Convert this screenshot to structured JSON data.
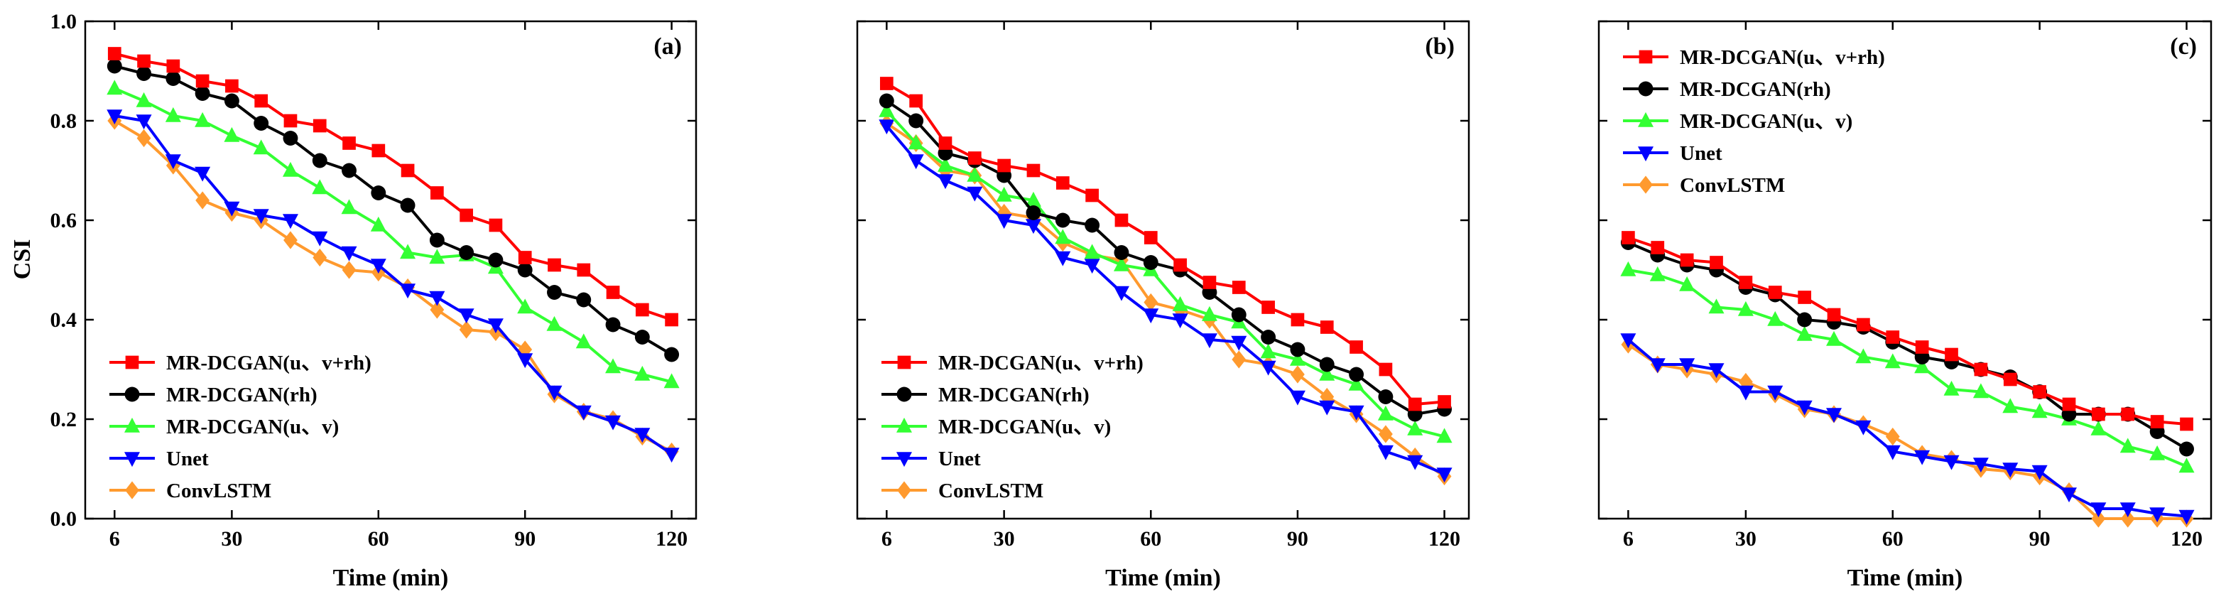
{
  "colors": {
    "MR-DCGAN(u、v+rh)": "#ff0000",
    "MR-DCGAN(rh)": "#000000",
    "MR-DCGAN(u、v)": "#33ff33",
    "Unet": "#0000ff",
    "ConvLSTM": "#ff9a2e"
  },
  "chart_data": [
    {
      "type": "line",
      "panel_label": "(a)",
      "xlabel": "Time (min)",
      "ylabel": "CSI",
      "xlim": [
        0,
        125
      ],
      "ylim": [
        0.0,
        1.0
      ],
      "xticks": [
        "6",
        "30",
        "60",
        "90",
        "120"
      ],
      "yticks": [
        "0.0",
        "0.2",
        "0.4",
        "0.6",
        "0.8",
        "1.0"
      ],
      "legend_position": "lower-left",
      "x": [
        6,
        12,
        18,
        24,
        30,
        36,
        42,
        48,
        54,
        60,
        66,
        72,
        78,
        84,
        90,
        96,
        102,
        108,
        114,
        120
      ],
      "series": [
        {
          "name": "MR-DCGAN(u、v+rh)",
          "marker": "square",
          "values": [
            0.935,
            0.92,
            0.91,
            0.88,
            0.87,
            0.84,
            0.8,
            0.79,
            0.755,
            0.74,
            0.7,
            0.655,
            0.61,
            0.59,
            0.525,
            0.51,
            0.5,
            0.455,
            0.42,
            0.4
          ]
        },
        {
          "name": "MR-DCGAN(rh)",
          "marker": "circle",
          "values": [
            0.91,
            0.895,
            0.885,
            0.855,
            0.84,
            0.795,
            0.765,
            0.72,
            0.7,
            0.655,
            0.63,
            0.56,
            0.535,
            0.52,
            0.5,
            0.455,
            0.44,
            0.39,
            0.365,
            0.33
          ]
        },
        {
          "name": "MR-DCGAN(u、v)",
          "marker": "triangle-up",
          "values": [
            0.865,
            0.84,
            0.81,
            0.8,
            0.77,
            0.745,
            0.7,
            0.665,
            0.625,
            0.59,
            0.535,
            0.525,
            0.53,
            0.505,
            0.425,
            0.39,
            0.355,
            0.305,
            0.29,
            0.275
          ]
        },
        {
          "name": "Unet",
          "marker": "triangle-down",
          "values": [
            0.81,
            0.8,
            0.72,
            0.695,
            0.625,
            0.61,
            0.6,
            0.565,
            0.535,
            0.51,
            0.46,
            0.445,
            0.41,
            0.39,
            0.32,
            0.255,
            0.215,
            0.195,
            0.17,
            0.13
          ]
        },
        {
          "name": "ConvLSTM",
          "marker": "diamond",
          "values": [
            0.8,
            0.765,
            0.71,
            0.64,
            0.615,
            0.6,
            0.56,
            0.525,
            0.5,
            0.495,
            0.465,
            0.42,
            0.38,
            0.375,
            0.34,
            0.25,
            0.215,
            0.2,
            0.165,
            0.135
          ]
        }
      ]
    },
    {
      "type": "line",
      "panel_label": "(b)",
      "xlabel": "Time (min)",
      "ylabel": "",
      "xlim": [
        0,
        125
      ],
      "ylim": [
        0.0,
        1.0
      ],
      "xticks": [
        "6",
        "30",
        "60",
        "90",
        "120"
      ],
      "yticks": [],
      "legend_position": "lower-left",
      "x": [
        6,
        12,
        18,
        24,
        30,
        36,
        42,
        48,
        54,
        60,
        66,
        72,
        78,
        84,
        90,
        96,
        102,
        108,
        114,
        120
      ],
      "series": [
        {
          "name": "MR-DCGAN(u、v+rh)",
          "marker": "square",
          "values": [
            0.875,
            0.84,
            0.755,
            0.725,
            0.71,
            0.7,
            0.675,
            0.65,
            0.6,
            0.565,
            0.51,
            0.475,
            0.465,
            0.425,
            0.4,
            0.385,
            0.345,
            0.3,
            0.23,
            0.235
          ]
        },
        {
          "name": "MR-DCGAN(rh)",
          "marker": "circle",
          "values": [
            0.84,
            0.8,
            0.735,
            0.72,
            0.69,
            0.615,
            0.6,
            0.59,
            0.535,
            0.515,
            0.5,
            0.455,
            0.41,
            0.365,
            0.34,
            0.31,
            0.29,
            0.245,
            0.21,
            0.22
          ]
        },
        {
          "name": "MR-DCGAN(u、v)",
          "marker": "triangle-up",
          "values": [
            0.82,
            0.755,
            0.71,
            0.69,
            0.65,
            0.64,
            0.565,
            0.535,
            0.51,
            0.5,
            0.43,
            0.41,
            0.395,
            0.335,
            0.32,
            0.29,
            0.27,
            0.21,
            0.18,
            0.165
          ]
        },
        {
          "name": "Unet",
          "marker": "triangle-down",
          "values": [
            0.79,
            0.72,
            0.68,
            0.655,
            0.6,
            0.59,
            0.525,
            0.51,
            0.455,
            0.41,
            0.4,
            0.36,
            0.355,
            0.305,
            0.245,
            0.225,
            0.215,
            0.135,
            0.115,
            0.09
          ]
        },
        {
          "name": "ConvLSTM",
          "marker": "diamond",
          "values": [
            0.795,
            0.755,
            0.7,
            0.69,
            0.615,
            0.605,
            0.555,
            0.53,
            0.52,
            0.435,
            0.42,
            0.4,
            0.32,
            0.31,
            0.29,
            0.245,
            0.21,
            0.17,
            0.125,
            0.085
          ]
        }
      ]
    },
    {
      "type": "line",
      "panel_label": "(c)",
      "xlabel": "Time (min)",
      "ylabel": "",
      "xlim": [
        0,
        125
      ],
      "ylim": [
        0.0,
        1.0
      ],
      "xticks": [
        "6",
        "30",
        "60",
        "90",
        "120"
      ],
      "yticks": [],
      "legend_position": "top-left",
      "x": [
        6,
        12,
        18,
        24,
        30,
        36,
        42,
        48,
        54,
        60,
        66,
        72,
        78,
        84,
        90,
        96,
        102,
        108,
        114,
        120
      ],
      "series": [
        {
          "name": "MR-DCGAN(u、v+rh)",
          "marker": "square",
          "values": [
            0.565,
            0.545,
            0.52,
            0.515,
            0.475,
            0.455,
            0.445,
            0.41,
            0.39,
            0.365,
            0.345,
            0.33,
            0.3,
            0.28,
            0.255,
            0.23,
            0.21,
            0.21,
            0.195,
            0.19
          ]
        },
        {
          "name": "MR-DCGAN(rh)",
          "marker": "circle",
          "values": [
            0.555,
            0.53,
            0.51,
            0.5,
            0.465,
            0.45,
            0.4,
            0.395,
            0.385,
            0.355,
            0.325,
            0.315,
            0.3,
            0.285,
            0.255,
            0.21,
            0.21,
            0.21,
            0.175,
            0.14
          ]
        },
        {
          "name": "MR-DCGAN(u、v)",
          "marker": "triangle-up",
          "values": [
            0.5,
            0.49,
            0.47,
            0.425,
            0.42,
            0.4,
            0.37,
            0.36,
            0.325,
            0.315,
            0.305,
            0.26,
            0.255,
            0.225,
            0.215,
            0.2,
            0.18,
            0.145,
            0.13,
            0.105
          ]
        },
        {
          "name": "Unet",
          "marker": "triangle-down",
          "values": [
            0.36,
            0.31,
            0.31,
            0.3,
            0.255,
            0.255,
            0.225,
            0.21,
            0.185,
            0.135,
            0.125,
            0.115,
            0.11,
            0.1,
            0.095,
            0.05,
            0.02,
            0.02,
            0.01,
            0.005
          ]
        },
        {
          "name": "ConvLSTM",
          "marker": "diamond",
          "values": [
            0.35,
            0.31,
            0.3,
            0.29,
            0.275,
            0.25,
            0.22,
            0.21,
            0.19,
            0.165,
            0.13,
            0.12,
            0.1,
            0.095,
            0.085,
            0.055,
            0.0,
            0.0,
            0.0,
            0.0
          ]
        }
      ]
    }
  ]
}
